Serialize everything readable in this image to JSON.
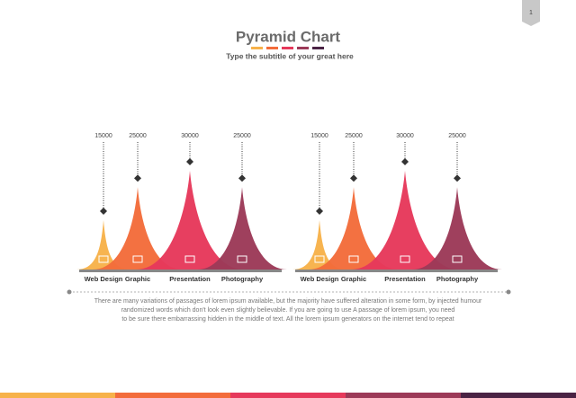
{
  "page_number": "1",
  "header": {
    "title": "Pyramid Chart",
    "subtitle": "Type the subtitle of your great here"
  },
  "chart_data": [
    {
      "type": "pyramid",
      "categories": [
        "Web Design",
        "Graphic",
        "Presentation",
        "Photography"
      ],
      "values": [
        15000,
        25000,
        30000,
        25000
      ],
      "colors": [
        "#f7b24a",
        "#f36c3b",
        "#e6395b",
        "#9c3a58"
      ]
    },
    {
      "type": "pyramid",
      "categories": [
        "Web Design",
        "Graphic",
        "Presentation",
        "Photography"
      ],
      "values": [
        15000,
        25000,
        30000,
        25000
      ],
      "colors": [
        "#f7b24a",
        "#f36c3b",
        "#e6395b",
        "#9c3a58"
      ]
    }
  ],
  "body_text": [
    "There are many variations of passages of lorem ipsum available, but the majority have suffered alteration in some form, by injected humour",
    "randomized words which don't look even slightly believable. If you are going to use A passage of lorem ipsum, you need",
    "to be sure there embarrassing hidden in the middle of text. All the lorem ipsum generators on the internet tend to repeat"
  ]
}
